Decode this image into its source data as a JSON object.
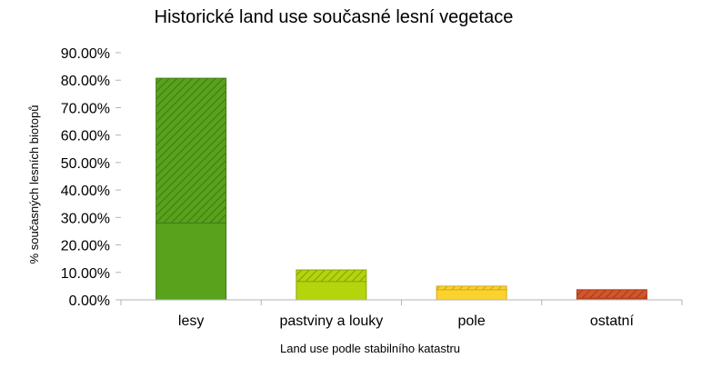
{
  "chart_data": {
    "type": "bar",
    "stacked": true,
    "title": "Historické land use současné lesní vegetace",
    "xlabel": "Land use podle stabilního katastru",
    "ylabel": "% současných lesních biotopů",
    "categories": [
      "lesy",
      "pastviny a louky",
      "pole",
      "ostatní"
    ],
    "ylim": [
      0,
      90
    ],
    "yticks": [
      "0.00%",
      "10.00%",
      "20.00%",
      "30.00%",
      "40.00%",
      "50.00%",
      "60.00%",
      "70.00%",
      "80.00%",
      "90.00%"
    ],
    "grid": false,
    "legend": "none",
    "series": [
      {
        "pattern": "solid",
        "values": [
          28.0,
          6.7,
          3.7,
          0.6
        ]
      },
      {
        "pattern": "hatched",
        "values": [
          52.7,
          4.2,
          1.3,
          3.1
        ]
      }
    ],
    "colors": [
      "#58a21c",
      "#b4d40c",
      "#fcd22c",
      "#d4562c"
    ],
    "hatch_colors": [
      "#447e15",
      "#8da60a",
      "#d4ab1a",
      "#a8401e"
    ]
  }
}
